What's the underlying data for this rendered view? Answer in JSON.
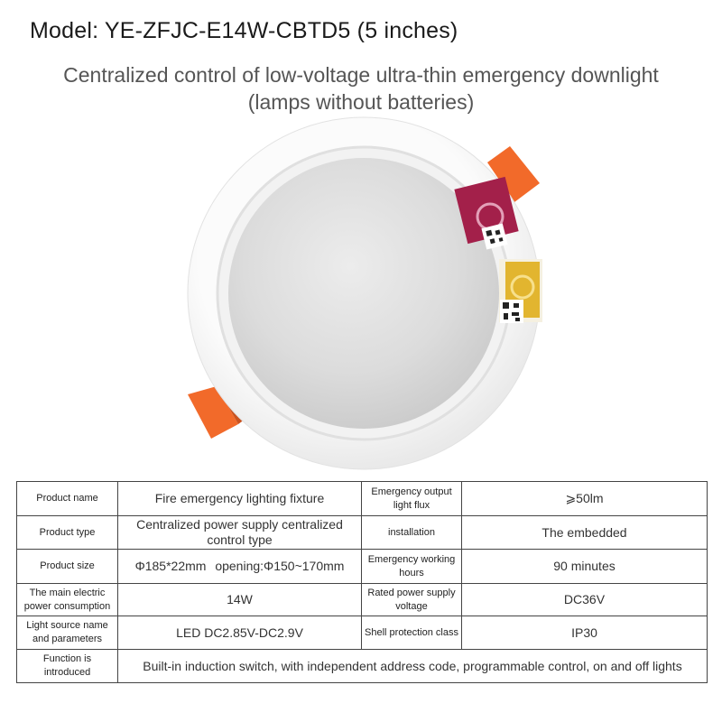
{
  "header": {
    "model": "Model: YE-ZFJC-E14W-CBTD5 (5 inches)",
    "subtitle_line1": "Centralized control of low-voltage ultra-thin emergency downlight",
    "subtitle_line2": "(lamps without batteries)"
  },
  "colors": {
    "clip_orange": "#f26a2a",
    "ring_white": "#f7f7f7",
    "lens_gray": "#d9d9d9",
    "sticker_red": "#a3204a",
    "sticker_yellow": "#e2b52f"
  },
  "specs": {
    "product_name_label": "Product name",
    "product_name_value": "Fire emergency lighting fixture",
    "emergency_output_label": "Emergency output light flux",
    "emergency_output_value": "⩾50lm",
    "product_type_label": "Product type",
    "product_type_value": "Centralized power supply centralized control type",
    "installation_label": "installation",
    "installation_value": "The embedded",
    "product_size_label": "Product size",
    "product_size_value": "Φ185*22mm",
    "product_size_opening": "opening:Φ150~170mm",
    "emergency_hours_label": "Emergency working hours",
    "emergency_hours_value": "90 minutes",
    "power_label": "The main electric power consumption",
    "power_value": "14W",
    "rated_voltage_label": "Rated power supply voltage",
    "rated_voltage_value": "DC36V",
    "light_source_label": "Light source name and parameters",
    "light_source_value": "LED DC2.85V-DC2.9V",
    "shell_label": "Shell protection class",
    "shell_value": "IP30",
    "function_label": "Function is introduced",
    "function_value": "Built-in induction switch, with independent address code, programmable control, on and off lights"
  }
}
